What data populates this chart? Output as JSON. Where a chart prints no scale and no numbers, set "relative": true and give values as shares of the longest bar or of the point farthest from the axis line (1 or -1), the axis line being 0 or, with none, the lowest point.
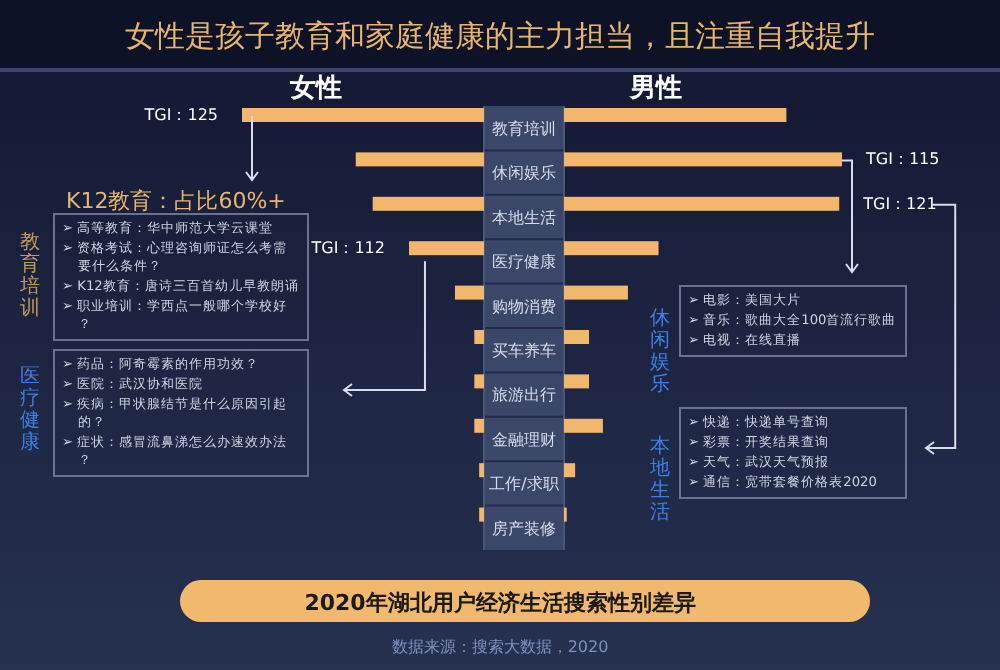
{
  "chart_data": [
    {
      "type": "bar",
      "orientation": "horizontal",
      "relative": true,
      "title": "女性是孩子教育和家庭健康的主力担当，且注重自我提升",
      "subtitle": "2020年湖北用户经济生活搜索性别差异",
      "categories": [
        "教育培训",
        "休闲娱乐",
        "本地生活",
        "医疗健康",
        "购物消费",
        "买车养车",
        "旅游出行",
        "金融理财",
        "工作/求职",
        "房产装修"
      ],
      "series": [
        {
          "name": "女性",
          "color": "#f2b66d",
          "values": [
            -1,
            -0.53,
            -0.46,
            -0.31,
            -0.12,
            -0.04,
            -0.04,
            -0.04,
            -0.02,
            -0.02
          ]
        }
      ],
      "annotations": [
        "TGI：125",
        "TGI：112",
        "K12教育：占比60%+",
        "教育培训",
        "➢ 高等教育：华中师范大学云课堂",
        "➢ 资格考试：心理咨询师证怎么考需要什么条件？",
        "➢ K12教育：唐诗三百首幼儿早教朗诵",
        "➢ 职业培训：学西点一般哪个学校好？",
        "医疗健康",
        "➢ 药品：阿奇霉素的作用功效？",
        "➢ 医院：武汉协和医院",
        "➢ 疾病：甲状腺结节是什么原因引起的？",
        "➢ 症状：感冒流鼻涕怎么办速效办法？",
        "数据来源：搜索大数据，2020"
      ]
    },
    {
      "type": "bar",
      "orientation": "horizontal",
      "relative": true,
      "categories": [
        null,
        null,
        null,
        null,
        null,
        null,
        null,
        null,
        null,
        null
      ],
      "series": [
        {
          "name": "男性",
          "color": "#f2b66d",
          "values": [
            0.8,
            1,
            0.99,
            0.34,
            0.23,
            0.09,
            0.09,
            0.14,
            0.04,
            0.01
          ]
        }
      ],
      "annotations": [
        "TGI：115",
        "TGI：121",
        "休闲娱乐",
        "➢ 电影：美国大片",
        "➢ 音乐：歌曲大全100首流行歌曲",
        "➢ 电视：在线直播",
        "本地生活",
        "➢ 快递：快递单号查询",
        "➢ 彩票：开奖结果查询",
        "➢ 天气：武汉天气预报",
        "➢ 通信：宽带套餐价格表2020"
      ]
    }
  ]
}
